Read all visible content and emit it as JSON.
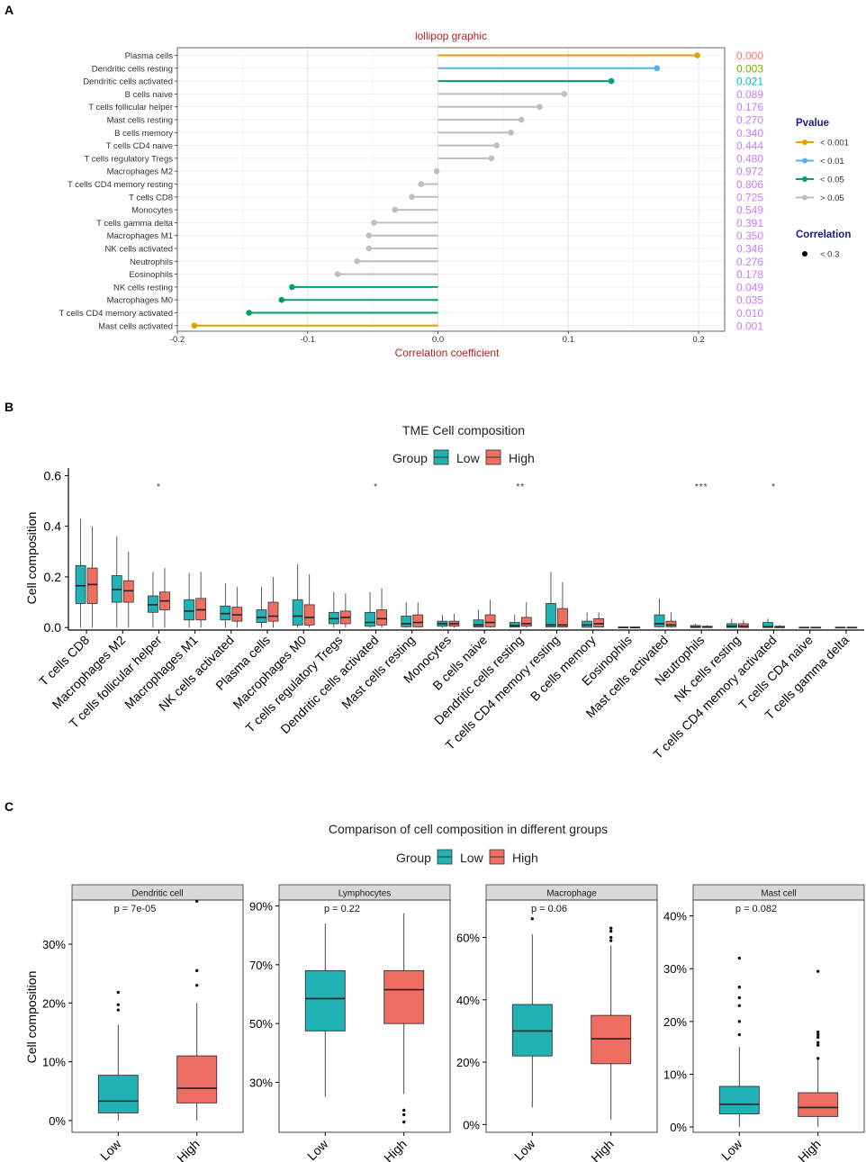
{
  "panels": {
    "a": "A",
    "b": "B",
    "c": "C"
  },
  "chart_data": [
    {
      "type": "lollipop",
      "title": "lollipop graphic",
      "xlabel": "Correlation coefficient",
      "xlim": [
        -0.2,
        0.22
      ],
      "xticks": [
        -0.2,
        -0.1,
        0.0,
        0.1,
        0.2
      ],
      "xtick_labels": [
        "-0.2",
        "-0.1",
        "0.0",
        "0.1",
        "0.2"
      ],
      "grid": true,
      "categories": [
        "Plasma cells",
        "Dendritic cells resting",
        "Dendritic cells activated",
        "B cells naive",
        "T cells follicular helper",
        "Mast cells resting",
        "B cells memory",
        "T cells CD4 naive",
        "T cells regulatory  Tregs",
        "Macrophages M2",
        "T cells CD4 memory resting",
        "T cells CD8",
        "Monocytes",
        "T cells gamma delta",
        "Macrophages M1",
        "NK cells activated",
        "Neutrophils",
        "Eosinophils",
        "NK cells resting",
        "Macrophages M0",
        "T cells CD4 memory activated",
        "Mast cells activated"
      ],
      "values": [
        0.199,
        0.168,
        0.133,
        0.097,
        0.078,
        0.064,
        0.056,
        0.045,
        0.041,
        -0.001,
        -0.013,
        -0.02,
        -0.033,
        -0.049,
        -0.053,
        -0.053,
        -0.062,
        -0.077,
        -0.112,
        -0.12,
        -0.145,
        -0.187
      ],
      "pvalues": [
        "0.000",
        "0.003",
        "0.021",
        "0.089",
        "0.176",
        "0.270",
        "0.340",
        "0.444",
        "0.480",
        "0.972",
        "0.806",
        "0.725",
        "0.549",
        "0.391",
        "0.350",
        "0.346",
        "0.276",
        "0.178",
        "0.049",
        "0.035",
        "0.010",
        "0.001"
      ],
      "pvalue_groups": [
        0,
        1,
        2,
        3,
        3,
        3,
        3,
        3,
        3,
        3,
        3,
        3,
        3,
        3,
        3,
        3,
        3,
        3,
        2,
        2,
        2,
        0
      ],
      "pvalue_label_colors": [
        "#F8766D",
        "#7CAE00",
        "#00BFC4",
        "#C77CFF"
      ],
      "legend_pvalue": {
        "title": "Pvalue",
        "items": [
          {
            "label": "< 0.001",
            "color": "#E69F00"
          },
          {
            "label": "< 0.01",
            "color": "#56B4E9"
          },
          {
            "label": "< 0.05",
            "color": "#009E73"
          },
          {
            "label": "> 0.05",
            "color": "#BEBEBE"
          }
        ]
      },
      "legend_correlation": {
        "title": "Correlation",
        "items": [
          {
            "label": "< 0.3"
          }
        ]
      }
    },
    {
      "type": "boxplot",
      "title": "TME Cell composition",
      "ylabel": "Cell composition",
      "ylim": [
        -0.01,
        0.63
      ],
      "yticks": [
        0.0,
        0.2,
        0.4,
        0.6
      ],
      "ytick_labels": [
        "0.0",
        "0.2",
        "0.4",
        "0.6"
      ],
      "legend": {
        "title": "Group",
        "items": [
          {
            "label": "Low",
            "color": "#20B2B4"
          },
          {
            "label": "High",
            "color": "#EE6F62"
          }
        ]
      },
      "categories": [
        "T cells CD8",
        "Macrophages M2",
        "T cells follicular helper",
        "Macrophages M1",
        "NK cells activated",
        "Plasma cells",
        "Macrophages M0",
        "T cells regulatory  Tregs",
        "Dendritic cells activated",
        "Mast cells resting",
        "Monocytes",
        "B cells naive",
        "Dendritic cells resting",
        "T cells CD4 memory resting",
        "B cells memory",
        "Eosinophils",
        "Mast cells activated",
        "Neutrophils",
        "NK cells resting",
        "T cells CD4 memory activated",
        "T cells CD4 naive",
        "T cells gamma delta"
      ],
      "significance": [
        "",
        "",
        "*",
        "",
        "",
        "",
        "",
        "",
        "*",
        "",
        "",
        "",
        "**",
        "",
        "",
        "",
        "",
        "***",
        "",
        "*",
        "",
        ""
      ],
      "series": [
        {
          "name": "Low",
          "stats": [
            [
              0.0,
              0.095,
              0.165,
              0.245,
              0.43
            ],
            [
              0.0,
              0.1,
              0.15,
              0.205,
              0.36
            ],
            [
              0.0,
              0.06,
              0.09,
              0.125,
              0.22
            ],
            [
              0.0,
              0.03,
              0.065,
              0.11,
              0.215
            ],
            [
              0.0,
              0.03,
              0.055,
              0.085,
              0.175
            ],
            [
              0.0,
              0.02,
              0.04,
              0.07,
              0.16
            ],
            [
              0.0,
              0.01,
              0.045,
              0.11,
              0.25
            ],
            [
              0.0,
              0.015,
              0.035,
              0.06,
              0.14
            ],
            [
              0.0,
              0.005,
              0.02,
              0.06,
              0.14
            ],
            [
              0.0,
              0.003,
              0.015,
              0.045,
              0.1
            ],
            [
              0.0,
              0.005,
              0.015,
              0.025,
              0.05
            ],
            [
              0.0,
              0.002,
              0.01,
              0.03,
              0.07
            ],
            [
              0.0,
              0.002,
              0.008,
              0.02,
              0.05
            ],
            [
              0.0,
              0.002,
              0.01,
              0.095,
              0.22
            ],
            [
              0.0,
              0.001,
              0.01,
              0.025,
              0.06
            ],
            [
              0.0,
              0.0,
              0.0,
              0.002,
              0.003
            ],
            [
              0.0,
              0.003,
              0.015,
              0.05,
              0.115
            ],
            [
              0.0,
              0.0,
              0.002,
              0.008,
              0.015
            ],
            [
              0.0,
              0.0,
              0.005,
              0.015,
              0.035
            ],
            [
              0.0,
              0.0,
              0.003,
              0.02,
              0.035
            ],
            [
              0.0,
              0.0,
              0.0,
              0.001,
              0.002
            ],
            [
              0.0,
              0.0,
              0.0,
              0.001,
              0.002
            ]
          ]
        },
        {
          "name": "High",
          "stats": [
            [
              0.0,
              0.095,
              0.17,
              0.235,
              0.4
            ],
            [
              0.0,
              0.1,
              0.145,
              0.185,
              0.3
            ],
            [
              0.0,
              0.07,
              0.105,
              0.14,
              0.235
            ],
            [
              0.0,
              0.03,
              0.07,
              0.115,
              0.22
            ],
            [
              0.0,
              0.025,
              0.05,
              0.08,
              0.16
            ],
            [
              0.0,
              0.025,
              0.045,
              0.1,
              0.2
            ],
            [
              0.0,
              0.01,
              0.04,
              0.09,
              0.21
            ],
            [
              0.0,
              0.015,
              0.04,
              0.065,
              0.135
            ],
            [
              0.0,
              0.01,
              0.035,
              0.07,
              0.155
            ],
            [
              0.0,
              0.003,
              0.02,
              0.05,
              0.1
            ],
            [
              0.0,
              0.005,
              0.015,
              0.025,
              0.055
            ],
            [
              0.0,
              0.003,
              0.02,
              0.05,
              0.11
            ],
            [
              0.0,
              0.005,
              0.015,
              0.04,
              0.1
            ],
            [
              0.0,
              0.002,
              0.01,
              0.075,
              0.18
            ],
            [
              0.0,
              0.002,
              0.015,
              0.035,
              0.06
            ],
            [
              0.0,
              0.0,
              0.0,
              0.002,
              0.003
            ],
            [
              0.0,
              0.003,
              0.01,
              0.025,
              0.06
            ],
            [
              0.0,
              0.0,
              0.002,
              0.005,
              0.01
            ],
            [
              0.0,
              0.0,
              0.005,
              0.015,
              0.03
            ],
            [
              0.0,
              0.0,
              0.001,
              0.005,
              0.01
            ],
            [
              0.0,
              0.0,
              0.0,
              0.001,
              0.002
            ],
            [
              0.0,
              0.0,
              0.0,
              0.001,
              0.002
            ]
          ]
        }
      ]
    },
    {
      "type": "boxplot-facets",
      "title": "Comparison of cell composition in different groups",
      "ylabel": "Cell composition",
      "legend": {
        "title": "Group",
        "items": [
          {
            "label": "Low",
            "color": "#20B2B4"
          },
          {
            "label": "High",
            "color": "#EE6F62"
          }
        ]
      },
      "categories": [
        "Low",
        "High"
      ],
      "facets": [
        {
          "title": "Dendritic cell",
          "pvalue": "p = 7e-05",
          "ylim": [
            -0.02,
            0.375
          ],
          "yticks": [
            0,
            0.1,
            0.2,
            0.3
          ],
          "ytick_labels": [
            "0%",
            "10%",
            "20%",
            "30%"
          ],
          "boxes": [
            [
              0.0,
              0.013,
              0.033,
              0.077,
              0.163
            ],
            [
              0.0,
              0.03,
              0.055,
              0.11,
              0.2
            ]
          ],
          "outliers": [
            [
              0.188,
              0.197,
              0.218
            ],
            [
              0.23,
              0.255,
              0.373
            ]
          ]
        },
        {
          "title": "Lymphocytes",
          "pvalue": "p = 0.22",
          "ylim": [
            0.13,
            0.92
          ],
          "yticks": [
            0.3,
            0.5,
            0.7,
            0.9
          ],
          "ytick_labels": [
            "30%",
            "50%",
            "70%",
            "90%"
          ],
          "boxes": [
            [
              0.25,
              0.475,
              0.585,
              0.68,
              0.84
            ],
            [
              0.26,
              0.5,
              0.615,
              0.68,
              0.875
            ]
          ],
          "outliers": [
            [],
            [
              0.165,
              0.19,
              0.205
            ]
          ]
        },
        {
          "title": "Macrophage",
          "pvalue": "p = 0.06",
          "ylim": [
            -0.025,
            0.72
          ],
          "yticks": [
            0,
            0.2,
            0.4,
            0.6
          ],
          "ytick_labels": [
            "0%",
            "20%",
            "40%",
            "60%"
          ],
          "boxes": [
            [
              0.055,
              0.22,
              0.3,
              0.385,
              0.61
            ],
            [
              0.015,
              0.195,
              0.275,
              0.35,
              0.575
            ]
          ],
          "outliers": [
            [
              0.66
            ],
            [
              0.59,
              0.6,
              0.62,
              0.63
            ]
          ]
        },
        {
          "title": "Mast cell",
          "pvalue": "p = 0.082",
          "ylim": [
            -0.01,
            0.43
          ],
          "yticks": [
            0,
            0.1,
            0.2,
            0.3,
            0.4
          ],
          "ytick_labels": [
            "0%",
            "10%",
            "20%",
            "30%",
            "40%"
          ],
          "boxes": [
            [
              0.0,
              0.025,
              0.043,
              0.077,
              0.152
            ],
            [
              0.0,
              0.02,
              0.037,
              0.065,
              0.13
            ]
          ],
          "outliers": [
            [
              0.175,
              0.2,
              0.23,
              0.245,
              0.265,
              0.32
            ],
            [
              0.13,
              0.155,
              0.16,
              0.17,
              0.175,
              0.18,
              0.295
            ]
          ]
        }
      ]
    }
  ]
}
